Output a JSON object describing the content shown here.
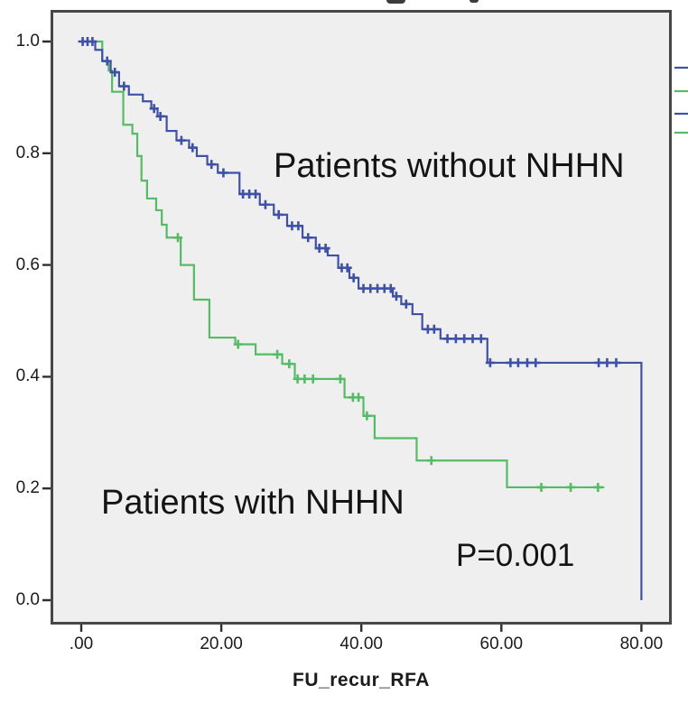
{
  "chart_data": {
    "type": "line",
    "subtype": "kaplan-meier-step",
    "xlabel": "FU_recur_RFA",
    "ylabel": "",
    "xlim": [
      -4.4,
      84.3
    ],
    "ylim": [
      -0.075,
      1.055
    ],
    "grid": false,
    "x_ticks": [
      {
        "value": 0,
        "label": ".00"
      },
      {
        "value": 20,
        "label": "20.00"
      },
      {
        "value": 40,
        "label": "40.00"
      },
      {
        "value": 60,
        "label": "60.00"
      },
      {
        "value": 80,
        "label": "80.00"
      }
    ],
    "y_ticks": [
      {
        "value": 1.0,
        "label": "1.0"
      },
      {
        "value": 0.8,
        "label": "0.8"
      },
      {
        "value": 0.6,
        "label": "0.6"
      },
      {
        "value": 0.4,
        "label": "0.4"
      },
      {
        "value": 0.2,
        "label": "0.2"
      },
      {
        "value": 0.0,
        "label": "0.0"
      }
    ],
    "series": [
      {
        "name": "Patients without NHHN",
        "color": "#3f51a5",
        "start": [
          0,
          1.0
        ],
        "steps": [
          [
            2,
            0.985
          ],
          [
            3,
            0.965
          ],
          [
            4.2,
            0.945
          ],
          [
            5.4,
            0.92
          ],
          [
            6.8,
            0.905
          ],
          [
            8.8,
            0.893
          ],
          [
            10,
            0.88
          ],
          [
            10.9,
            0.866
          ],
          [
            12.2,
            0.84
          ],
          [
            13.6,
            0.823
          ],
          [
            15.4,
            0.81
          ],
          [
            16.5,
            0.795
          ],
          [
            18,
            0.78
          ],
          [
            19.5,
            0.765
          ],
          [
            22.6,
            0.727
          ],
          [
            25.5,
            0.708
          ],
          [
            27.5,
            0.69
          ],
          [
            29.4,
            0.67
          ],
          [
            31.6,
            0.649
          ],
          [
            33.5,
            0.63
          ],
          [
            35.2,
            0.617
          ],
          [
            36.7,
            0.595
          ],
          [
            38.3,
            0.577
          ],
          [
            39.6,
            0.558
          ],
          [
            44.5,
            0.544
          ],
          [
            45.7,
            0.53
          ],
          [
            47.3,
            0.512
          ],
          [
            48.7,
            0.485
          ],
          [
            51.3,
            0.468
          ],
          [
            58,
            0.425
          ],
          [
            80,
            0
          ]
        ],
        "censors": [
          [
            0.2,
            1
          ],
          [
            0.9,
            1
          ],
          [
            1.6,
            1
          ],
          [
            3.7,
            0.965
          ],
          [
            4.8,
            0.945
          ],
          [
            6.1,
            0.92
          ],
          [
            10.4,
            0.88
          ],
          [
            11.3,
            0.866
          ],
          [
            14.3,
            0.823
          ],
          [
            15.9,
            0.81
          ],
          [
            18.6,
            0.78
          ],
          [
            20.3,
            0.765
          ],
          [
            23.1,
            0.727
          ],
          [
            24.0,
            0.727
          ],
          [
            24.9,
            0.727
          ],
          [
            26.3,
            0.708
          ],
          [
            28.2,
            0.69
          ],
          [
            30.1,
            0.67
          ],
          [
            31.0,
            0.67
          ],
          [
            32.4,
            0.649
          ],
          [
            34.0,
            0.63
          ],
          [
            34.9,
            0.63
          ],
          [
            37.2,
            0.595
          ],
          [
            38.0,
            0.595
          ],
          [
            38.9,
            0.577
          ],
          [
            40.3,
            0.558
          ],
          [
            41.3,
            0.558
          ],
          [
            42.3,
            0.558
          ],
          [
            43.3,
            0.558
          ],
          [
            44.2,
            0.558
          ],
          [
            45.0,
            0.544
          ],
          [
            46.4,
            0.53
          ],
          [
            49.5,
            0.485
          ],
          [
            50.4,
            0.485
          ],
          [
            52.3,
            0.468
          ],
          [
            53.5,
            0.468
          ],
          [
            54.7,
            0.468
          ],
          [
            55.9,
            0.468
          ],
          [
            57.1,
            0.468
          ],
          [
            58.4,
            0.425
          ],
          [
            61.3,
            0.425
          ],
          [
            62.4,
            0.425
          ],
          [
            63.7,
            0.425
          ],
          [
            64.9,
            0.425
          ],
          [
            73.9,
            0.425
          ],
          [
            75.1,
            0.425
          ],
          [
            76.4,
            0.425
          ]
        ]
      },
      {
        "name": "Patients with NHHN",
        "color": "#55bb66",
        "start": [
          0,
          1.0
        ],
        "steps": [
          [
            3,
            0.965
          ],
          [
            3.9,
            0.948
          ],
          [
            4.4,
            0.91
          ],
          [
            6,
            0.851
          ],
          [
            7.3,
            0.835
          ],
          [
            8,
            0.795
          ],
          [
            8.6,
            0.751
          ],
          [
            9.4,
            0.719
          ],
          [
            10.7,
            0.698
          ],
          [
            11.5,
            0.672
          ],
          [
            12.2,
            0.649
          ],
          [
            14.2,
            0.6
          ],
          [
            16.1,
            0.538
          ],
          [
            18.3,
            0.47
          ],
          [
            22,
            0.458
          ],
          [
            24.9,
            0.44
          ],
          [
            28.7,
            0.423
          ],
          [
            30.5,
            0.396
          ],
          [
            37.6,
            0.363
          ],
          [
            40.3,
            0.33
          ],
          [
            41.9,
            0.29
          ],
          [
            47.9,
            0.25
          ],
          [
            60.8,
            0.202
          ]
        ],
        "end_x": 74.7,
        "censors": [
          [
            13.8,
            0.649
          ],
          [
            22.4,
            0.458
          ],
          [
            28.0,
            0.44
          ],
          [
            29.7,
            0.423
          ],
          [
            30.9,
            0.396
          ],
          [
            31.9,
            0.396
          ],
          [
            33.1,
            0.396
          ],
          [
            37.0,
            0.396
          ],
          [
            38.8,
            0.363
          ],
          [
            39.6,
            0.363
          ],
          [
            40.8,
            0.33
          ],
          [
            50.0,
            0.25
          ],
          [
            65.7,
            0.202
          ],
          [
            69.9,
            0.202
          ],
          [
            73.8,
            0.202
          ]
        ]
      }
    ],
    "legend_fragments": [
      {
        "color": "#3f51a5"
      },
      {
        "color": "#55bb66"
      },
      {
        "color": "#3f51a5"
      },
      {
        "color": "#55bb66"
      }
    ],
    "annotations": [
      {
        "id": "without",
        "text": "Patients without NHHN"
      },
      {
        "id": "with",
        "text": "Patients with NHHN"
      },
      {
        "id": "p_value",
        "text": "P=0.001"
      }
    ]
  },
  "plot": {
    "background_color": "#efefef",
    "border_color": "#474747",
    "xlabel": "FU_recur_RFA"
  }
}
